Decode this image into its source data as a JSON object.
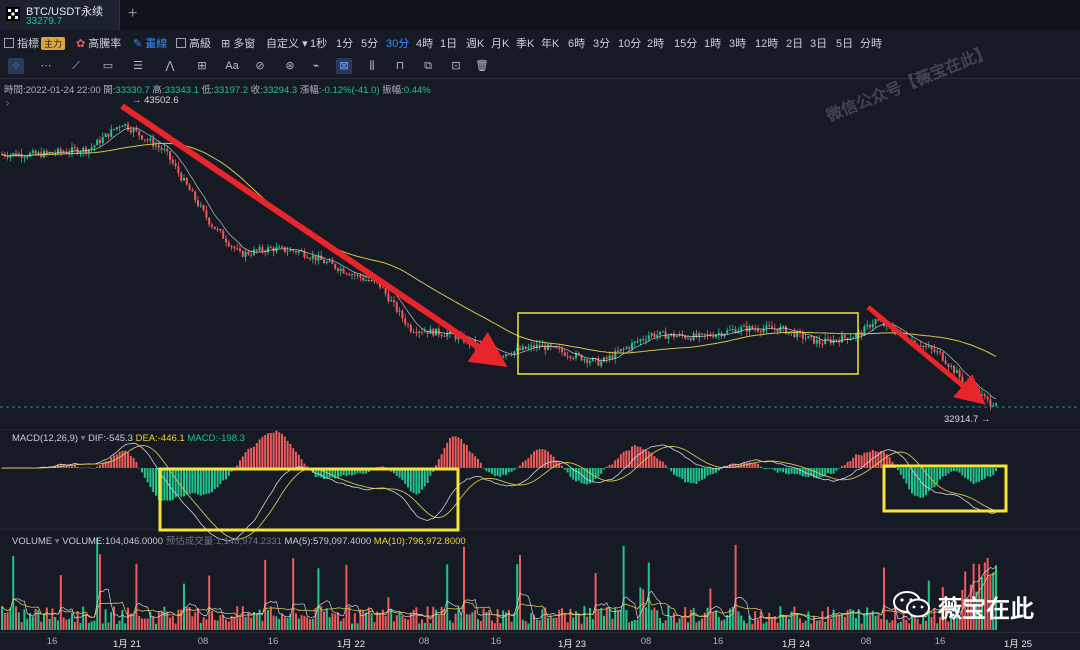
{
  "tab": {
    "title": "BTC/USDT永续",
    "price": "33279.7",
    "plus_icon": "+"
  },
  "toolbar": {
    "indicator": "指標",
    "indicator_badge": "主力",
    "gaotenglv": "高騰率",
    "candle": "畫線",
    "advanced": "高級",
    "multi_window": "多窗",
    "custom": "自定义",
    "intervals": [
      "1秒",
      "1分",
      "5分",
      "30分",
      "4時",
      "1日",
      "週K",
      "月K",
      "季K",
      "年K",
      "6時",
      "3分",
      "10分",
      "2時",
      "15分",
      "1時",
      "3時",
      "12時",
      "2日",
      "3日",
      "5日",
      "分時"
    ],
    "active_interval": "30分"
  },
  "info": {
    "time_label": "時間:",
    "time": "2022-01-24 22:00",
    "open_label": "開:",
    "open": "33330.7",
    "high_label": "高:",
    "high": "33343.1",
    "low_label": "低:",
    "low": "33197.2",
    "close_label": "收:",
    "close": "33294.3",
    "change_label": "漲幅:",
    "change": "-0.12%(-41.0)",
    "amp_label": "振幅:",
    "amp": "0.44%"
  },
  "price_panel": {
    "high_marker": "43502.6",
    "low_marker": "32914.7",
    "watermark": "微信公众号【薇宝在此】"
  },
  "macd": {
    "name": "MACD(12,26,9)",
    "dif": "DIF:-545.3",
    "dea": "DEA:-446.1",
    "macd": "MACD:-198.3"
  },
  "volume": {
    "name": "VOLUME",
    "volume": "VOLUME:104,046.0000",
    "forecast": "预估成交量:1,148,974.2331",
    "ma5": "MA(5):579,097.4000",
    "ma10": "MA(10):796,972.8000"
  },
  "brand": {
    "text": "薇宝在此"
  },
  "x_axis": {
    "ticks": [
      "16",
      "1月 21",
      "08",
      "16",
      "1月 22",
      "08",
      "16",
      "1月 23",
      "08",
      "16",
      "1月 24",
      "08",
      "16",
      "1月 25"
    ]
  },
  "colors": {
    "up": "#21c58e",
    "down": "#ef5b5b",
    "ma": "#d9c34a",
    "annotation_arrow": "#e8252b",
    "annotation_box": "#f5e43a",
    "background": "#161a25"
  },
  "chart_data": {
    "type": "candlestick",
    "title": "BTC/USDT永续 30分",
    "xlabel": "",
    "ylabel": "",
    "x_categories": [
      "1月 21",
      "1月 22",
      "1月 23",
      "1月 24",
      "1月 25"
    ],
    "price_extremes": {
      "high": 43502.6,
      "low": 32914.7
    },
    "approx_close_path": [
      {
        "t": "1月 20 16:00",
        "price": 41900
      },
      {
        "t": "1月 21 00:00",
        "price": 42900
      },
      {
        "t": "1月 21 08:00",
        "price": 40800
      },
      {
        "t": "1月 21 16:00",
        "price": 38800
      },
      {
        "t": "1月 22 00:00",
        "price": 38500
      },
      {
        "t": "1月 22 08:00",
        "price": 36000
      },
      {
        "t": "1月 22 16:00",
        "price": 35000
      },
      {
        "t": "1月 23 00:00",
        "price": 34900
      },
      {
        "t": "1月 23 08:00",
        "price": 35600
      },
      {
        "t": "1月 23 16:00",
        "price": 35900
      },
      {
        "t": "1月 24 00:00",
        "price": 35300
      },
      {
        "t": "1月 24 08:00",
        "price": 35300
      },
      {
        "t": "1月 24 16:00",
        "price": 33900
      },
      {
        "t": "1月 24 22:00",
        "price": 33294.3
      }
    ],
    "legend": [
      "MACD(12,26,9)",
      "VOLUME",
      "MA(5)",
      "MA(10)"
    ],
    "grid": false
  }
}
